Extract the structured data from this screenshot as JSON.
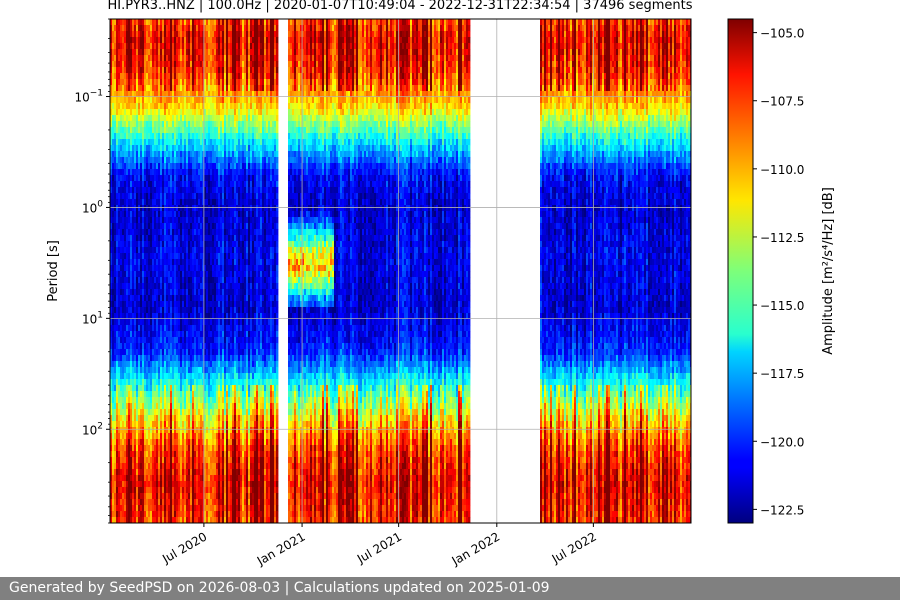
{
  "title": "HI.PYR3..HNZ | 100.0Hz | 2020-01-07T10:49:04 - 2022-12-31T22:34:54 | 37496 segments",
  "footer": "Generated by SeedPSD on 2026-08-03 | Calculations updated on 2025-01-09",
  "chart_data": {
    "type": "heatmap",
    "title": "HI.PYR3..HNZ | 100.0Hz | 2020-01-07T10:49:04 - 2022-12-31T22:34:54 | 37496 segments",
    "xlabel": "",
    "ylabel": "Period [s]",
    "x_range": [
      "2020-01-07",
      "2022-12-31"
    ],
    "y_scale": "log",
    "y_inverted": true,
    "y_range": [
      0.02,
      700
    ],
    "x_ticks": [
      {
        "date": "2020-07-01",
        "label": "Jul 2020"
      },
      {
        "date": "2021-01-01",
        "label": "Jan 2021"
      },
      {
        "date": "2021-07-01",
        "label": "Jul 2021"
      },
      {
        "date": "2022-01-01",
        "label": "Jan 2022"
      },
      {
        "date": "2022-07-01",
        "label": "Jul 2022"
      }
    ],
    "y_ticks": [
      {
        "value": 0.1,
        "label": "10⁻¹",
        "base": "10",
        "exp": "−1"
      },
      {
        "value": 1,
        "label": "10⁰",
        "base": "10",
        "exp": "0"
      },
      {
        "value": 10,
        "label": "10¹",
        "base": "10",
        "exp": "1"
      },
      {
        "value": 100,
        "label": "10²",
        "base": "10",
        "exp": "2"
      }
    ],
    "grid": true,
    "data_gaps": [
      {
        "start": "2020-11-20",
        "end": "2020-12-05"
      },
      {
        "start": "2021-11-15",
        "end": "2022-03-20"
      }
    ],
    "colorbar": {
      "label": "Amplitude [m²/s⁴/Hz] [dB]",
      "range": [
        -123.0,
        -104.5
      ],
      "colormap": "jet",
      "ticks": [
        {
          "value": -105.0,
          "label": "−105.0"
        },
        {
          "value": -107.5,
          "label": "−107.5"
        },
        {
          "value": -110.0,
          "label": "−110.0"
        },
        {
          "value": -112.5,
          "label": "−112.5"
        },
        {
          "value": -115.0,
          "label": "−115.0"
        },
        {
          "value": -117.5,
          "label": "−117.5"
        },
        {
          "value": -120.0,
          "label": "−120.0"
        },
        {
          "value": -122.5,
          "label": "−122.5"
        }
      ]
    },
    "period_profile": [
      {
        "period": 0.02,
        "value": -108.0
      },
      {
        "period": 0.03,
        "value": -106.5
      },
      {
        "period": 0.06,
        "value": -107.5
      },
      {
        "period": 0.12,
        "value": -110.5
      },
      {
        "period": 0.25,
        "value": -116.0
      },
      {
        "period": 0.5,
        "value": -120.5
      },
      {
        "period": 1.0,
        "value": -121.5
      },
      {
        "period": 3.0,
        "value": -121.0
      },
      {
        "period": 8.0,
        "value": -121.5
      },
      {
        "period": 20.0,
        "value": -120.0
      },
      {
        "period": 40.0,
        "value": -115.5
      },
      {
        "period": 80.0,
        "value": -111.0
      },
      {
        "period": 150.0,
        "value": -108.0
      },
      {
        "period": 300.0,
        "value": -106.5
      },
      {
        "period": 700.0,
        "value": -107.5
      }
    ],
    "microseism_band": {
      "period_range": [
        1.5,
        6.0
      ],
      "value": -106.5,
      "months": [
        "2020-12",
        "2021-01",
        "2021-02"
      ]
    }
  }
}
